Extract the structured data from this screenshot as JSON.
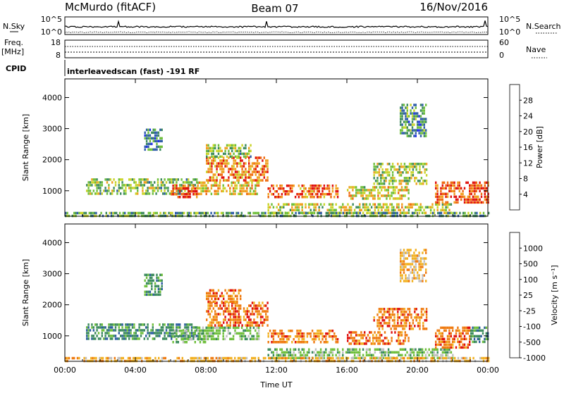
{
  "header": {
    "title": "McMurdo (fitACF)",
    "beam": "Beam 07",
    "date": "16/Nov/2016"
  },
  "strip_labels": {
    "nsky": "N.Sky",
    "nsky_ticks": [
      "10^5",
      "10^0"
    ],
    "nsearch": "N.Search",
    "nsearch_ticks": [
      "10^5",
      "10^0"
    ],
    "freq": "Freq.",
    "freq_unit": "[MHz]",
    "freq_ticks": [
      "18",
      "8"
    ],
    "nave": "Nave",
    "nave_ticks": [
      "60",
      "0"
    ],
    "cpid": "CPID",
    "cpid_text": "interleavedscan (fast) -191 RF"
  },
  "chart_data": [
    {
      "type": "heatmap",
      "name": "power-panel",
      "xlabel": "Time UT",
      "ylabel": "Slant Range [km]",
      "x_ticks": [
        "00:00",
        "04:00",
        "08:00",
        "12:00",
        "16:00",
        "20:00",
        "00:00"
      ],
      "x_tick_hours": [
        0,
        4,
        8,
        12,
        16,
        20,
        24
      ],
      "xlim_hours": [
        0,
        24
      ],
      "y_ticks": [
        1000,
        2000,
        3000,
        4000
      ],
      "ylim": [
        180,
        4600
      ],
      "colorbar": {
        "label": "Power [dB]",
        "ticks": [
          "4",
          "8",
          "12",
          "16",
          "20",
          "24",
          "28"
        ],
        "tick_values": [
          4,
          8,
          12,
          16,
          20,
          24,
          28
        ],
        "range": [
          0,
          32
        ],
        "colors": [
          "#1f2fe8",
          "#2e5ca8",
          "#3d8a5e",
          "#6fbf3c",
          "#c9d42a",
          "#f0a020",
          "#ef6a10",
          "#e0100c"
        ]
      },
      "echo_regions": [
        {
          "t0": 1.2,
          "t1": 7.5,
          "r0": 900,
          "r1": 1400,
          "level": 0.45
        },
        {
          "t0": 6.0,
          "t1": 7.5,
          "r0": 800,
          "r1": 1200,
          "level": 0.95
        },
        {
          "t0": 7.5,
          "t1": 11.0,
          "r0": 850,
          "r1": 1300,
          "level": 0.65
        },
        {
          "t0": 8.0,
          "t1": 11.5,
          "r0": 1300,
          "r1": 2100,
          "level": 0.8
        },
        {
          "t0": 8.0,
          "t1": 10.5,
          "r0": 2100,
          "r1": 2500,
          "level": 0.45
        },
        {
          "t0": 11.5,
          "t1": 15.5,
          "r0": 800,
          "r1": 1200,
          "level": 0.85
        },
        {
          "t0": 11.5,
          "t1": 22.0,
          "r0": 300,
          "r1": 600,
          "level": 0.55
        },
        {
          "t0": 16.0,
          "t1": 19.5,
          "r0": 700,
          "r1": 1150,
          "level": 0.6
        },
        {
          "t0": 17.5,
          "t1": 20.5,
          "r0": 1250,
          "r1": 1900,
          "level": 0.5
        },
        {
          "t0": 21.0,
          "t1": 24.0,
          "r0": 600,
          "r1": 1300,
          "level": 0.9
        },
        {
          "t0": 0.0,
          "t1": 24.0,
          "r0": 180,
          "r1": 320,
          "level": 0.35
        },
        {
          "t0": 4.5,
          "t1": 5.5,
          "r0": 2300,
          "r1": 3000,
          "level": 0.25
        },
        {
          "t0": 19.0,
          "t1": 20.5,
          "r0": 2800,
          "r1": 3800,
          "level": 0.3
        }
      ]
    },
    {
      "type": "heatmap",
      "name": "velocity-panel",
      "xlabel": "Time UT",
      "ylabel": "Slant Range [km]",
      "x_ticks": [
        "00:00",
        "04:00",
        "08:00",
        "12:00",
        "16:00",
        "20:00",
        "00:00"
      ],
      "x_tick_hours": [
        0,
        4,
        8,
        12,
        16,
        20,
        24
      ],
      "xlim_hours": [
        0,
        24
      ],
      "y_ticks": [
        1000,
        2000,
        3000,
        4000
      ],
      "ylim": [
        180,
        4600
      ],
      "colorbar": {
        "label": "Velocity [m s⁻¹]",
        "ticks": [
          "1000",
          "500",
          "100",
          "25",
          "-25",
          "-100",
          "-500",
          "-1000"
        ],
        "colors": [
          "#1f35e8",
          "#2c5da0",
          "#3a8a5c",
          "#6fbf3c",
          "#c0c0c0",
          "#f2b020",
          "#ef7a10",
          "#e0100c"
        ]
      },
      "echo_regions": [
        {
          "t0": 1.2,
          "t1": 7.5,
          "r0": 900,
          "r1": 1400,
          "level": 2
        },
        {
          "t0": 6.0,
          "t1": 8.0,
          "r0": 800,
          "r1": 1200,
          "level": 3
        },
        {
          "t0": 7.5,
          "t1": 11.0,
          "r0": 850,
          "r1": 1300,
          "level": 3
        },
        {
          "t0": 8.0,
          "t1": 11.5,
          "r0": 1300,
          "r1": 2100,
          "level": 6
        },
        {
          "t0": 8.0,
          "t1": 10.0,
          "r0": 2100,
          "r1": 2500,
          "level": 6
        },
        {
          "t0": 11.5,
          "t1": 15.5,
          "r0": 800,
          "r1": 1200,
          "level": 6
        },
        {
          "t0": 11.5,
          "t1": 22.0,
          "r0": 300,
          "r1": 600,
          "level": 3
        },
        {
          "t0": 16.0,
          "t1": 19.5,
          "r0": 700,
          "r1": 1150,
          "level": 6
        },
        {
          "t0": 17.5,
          "t1": 20.5,
          "r0": 1250,
          "r1": 1900,
          "level": 6
        },
        {
          "t0": 21.0,
          "t1": 23.0,
          "r0": 600,
          "r1": 1300,
          "level": 6
        },
        {
          "t0": 23.0,
          "t1": 24.0,
          "r0": 800,
          "r1": 1300,
          "level": 2
        },
        {
          "t0": 0.0,
          "t1": 24.0,
          "r0": 180,
          "r1": 320,
          "level": 5
        },
        {
          "t0": 4.5,
          "t1": 5.5,
          "r0": 2300,
          "r1": 3000,
          "level": 2
        },
        {
          "t0": 19.0,
          "t1": 20.5,
          "r0": 2800,
          "r1": 3800,
          "level": 5
        }
      ]
    }
  ]
}
